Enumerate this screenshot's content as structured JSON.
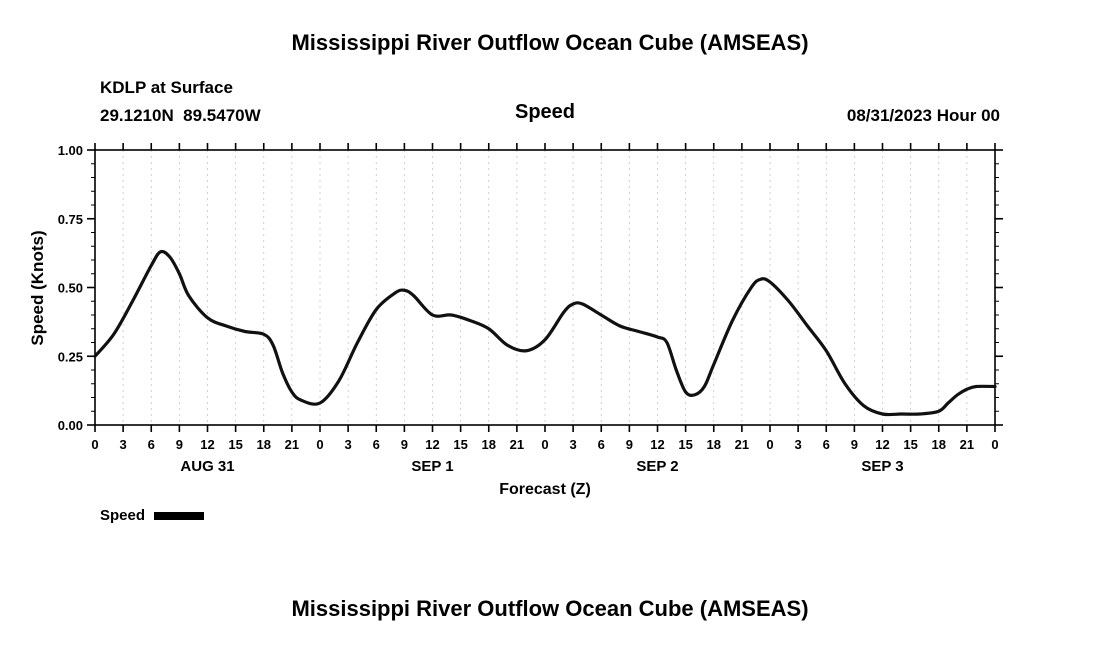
{
  "header": {
    "title": "Mississippi River Outflow Ocean Cube (AMSEAS)",
    "station": "KDLP at Surface",
    "coordinates": "29.1210N  89.5470W",
    "variable": "Speed",
    "run_time": "08/31/2023 Hour 00"
  },
  "legend": {
    "label": "Speed"
  },
  "footer": {
    "next_title": "Mississippi River Outflow Ocean Cube (AMSEAS)"
  },
  "chart_data": {
    "type": "line",
    "title": "Speed",
    "xlabel": "Forecast (Z)",
    "ylabel": "Speed (Knots)",
    "ylim": [
      0.0,
      1.0
    ],
    "xlim_hours": [
      0,
      96
    ],
    "grid": "vertical-dashed",
    "grid_color": "#c4c4c4",
    "frame_color": "#000000",
    "y_ticks": [
      0.0,
      0.25,
      0.5,
      0.75,
      1.0
    ],
    "y_tick_labels": [
      "0.00",
      "0.25",
      "0.50",
      "0.75",
      "1.00"
    ],
    "y_minor_step": 0.05,
    "x_tick_step_hours": 3,
    "x_tick_labels": [
      "0",
      "3",
      "6",
      "9",
      "12",
      "15",
      "18",
      "21",
      "0",
      "3",
      "6",
      "9",
      "12",
      "15",
      "18",
      "21",
      "0",
      "3",
      "6",
      "9",
      "12",
      "15",
      "18",
      "21",
      "0",
      "3",
      "6",
      "9",
      "12",
      "15",
      "18",
      "21",
      "0"
    ],
    "day_labels": [
      {
        "label": "AUG 31",
        "hour": 12
      },
      {
        "label": "SEP 1",
        "hour": 36
      },
      {
        "label": "SEP 2",
        "hour": 60
      },
      {
        "label": "SEP 3",
        "hour": 84
      }
    ],
    "series": [
      {
        "name": "Speed",
        "color": "#111111",
        "points": [
          [
            0,
            0.25
          ],
          [
            2,
            0.33
          ],
          [
            4,
            0.45
          ],
          [
            6,
            0.58
          ],
          [
            7,
            0.63
          ],
          [
            8,
            0.61
          ],
          [
            9,
            0.55
          ],
          [
            10,
            0.47
          ],
          [
            12,
            0.39
          ],
          [
            14,
            0.36
          ],
          [
            16,
            0.34
          ],
          [
            18,
            0.33
          ],
          [
            19,
            0.29
          ],
          [
            20,
            0.19
          ],
          [
            21,
            0.12
          ],
          [
            22,
            0.09
          ],
          [
            24,
            0.08
          ],
          [
            26,
            0.16
          ],
          [
            28,
            0.3
          ],
          [
            30,
            0.42
          ],
          [
            32,
            0.48
          ],
          [
            33,
            0.49
          ],
          [
            34,
            0.47
          ],
          [
            36,
            0.4
          ],
          [
            38,
            0.4
          ],
          [
            40,
            0.38
          ],
          [
            42,
            0.35
          ],
          [
            44,
            0.29
          ],
          [
            46,
            0.27
          ],
          [
            48,
            0.31
          ],
          [
            50,
            0.41
          ],
          [
            51,
            0.44
          ],
          [
            52,
            0.44
          ],
          [
            54,
            0.4
          ],
          [
            56,
            0.36
          ],
          [
            58,
            0.34
          ],
          [
            60,
            0.32
          ],
          [
            61,
            0.3
          ],
          [
            62,
            0.2
          ],
          [
            63,
            0.12
          ],
          [
            64,
            0.11
          ],
          [
            65,
            0.14
          ],
          [
            66,
            0.22
          ],
          [
            68,
            0.38
          ],
          [
            70,
            0.5
          ],
          [
            71,
            0.53
          ],
          [
            72,
            0.52
          ],
          [
            74,
            0.45
          ],
          [
            76,
            0.36
          ],
          [
            78,
            0.27
          ],
          [
            80,
            0.15
          ],
          [
            82,
            0.07
          ],
          [
            84,
            0.04
          ],
          [
            86,
            0.04
          ],
          [
            88,
            0.04
          ],
          [
            90,
            0.05
          ],
          [
            91,
            0.08
          ],
          [
            92,
            0.11
          ],
          [
            93,
            0.13
          ],
          [
            94,
            0.14
          ],
          [
            96,
            0.14
          ]
        ]
      }
    ]
  }
}
